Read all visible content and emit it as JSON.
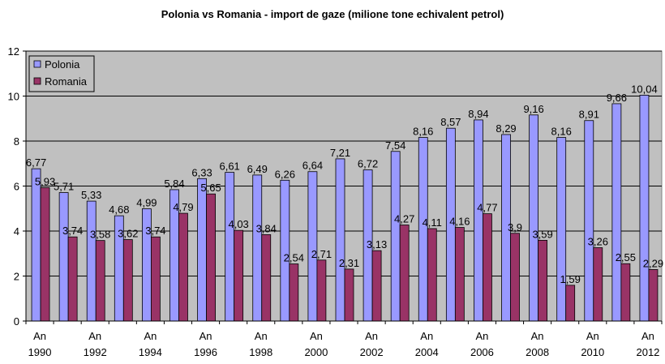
{
  "chart_data": {
    "type": "bar",
    "title": "Polonia vs Romania - import de gaze (milione tone echivalent petrol)",
    "xlabel": "",
    "ylabel": "",
    "ylim": [
      0,
      12
    ],
    "y_ticks": [
      "0",
      "2",
      "4",
      "6",
      "8",
      "10",
      "12"
    ],
    "grid": true,
    "legend_position": "top-left",
    "categories": [
      "1990",
      "1991",
      "1992",
      "1993",
      "1994",
      "1995",
      "1996",
      "1997",
      "1998",
      "1999",
      "2000",
      "2001",
      "2002",
      "2003",
      "2004",
      "2005",
      "2006",
      "2007",
      "2008",
      "2009",
      "2010",
      "2011",
      "2012"
    ],
    "x_tick_labels": [
      {
        "line1": "An",
        "line2": "1990"
      },
      {
        "line1": "An",
        "line2": "1992"
      },
      {
        "line1": "An",
        "line2": "1994"
      },
      {
        "line1": "An",
        "line2": "1996"
      },
      {
        "line1": "An",
        "line2": "1998"
      },
      {
        "line1": "An",
        "line2": "2000"
      },
      {
        "line1": "An",
        "line2": "2002"
      },
      {
        "line1": "An",
        "line2": "2004"
      },
      {
        "line1": "An",
        "line2": "2006"
      },
      {
        "line1": "An",
        "line2": "2008"
      },
      {
        "line1": "An",
        "line2": "2010"
      },
      {
        "line1": "An",
        "line2": "2012"
      }
    ],
    "series": [
      {
        "name": "Polonia",
        "color": "#9999FF",
        "values": [
          6.77,
          5.71,
          5.33,
          4.68,
          4.99,
          5.84,
          6.33,
          6.61,
          6.49,
          6.26,
          6.64,
          7.21,
          6.72,
          7.54,
          8.16,
          8.57,
          8.94,
          8.29,
          9.16,
          8.16,
          8.91,
          9.66,
          10.04
        ],
        "labels": [
          "6,77",
          "5,71",
          "5,33",
          "4,68",
          "4,99",
          "5,84",
          "6,33",
          "6,61",
          "6,49",
          "6,26",
          "6,64",
          "7,21",
          "6,72",
          "7,54",
          "8,16",
          "8,57",
          "8,94",
          "8,29",
          "9,16",
          "8,16",
          "8,91",
          "9,66",
          "10,04"
        ]
      },
      {
        "name": "Romania",
        "color": "#993366",
        "values": [
          5.93,
          3.74,
          3.58,
          3.62,
          3.74,
          4.79,
          5.65,
          4.03,
          3.84,
          2.54,
          2.71,
          2.31,
          3.13,
          4.27,
          4.11,
          4.16,
          4.77,
          3.9,
          3.59,
          1.59,
          3.26,
          2.55,
          2.29
        ],
        "labels": [
          "5,93",
          "3,74",
          "3,58",
          "3,62",
          "3,74",
          "4,79",
          "5,65",
          "4,03",
          "3,84",
          "2,54",
          "2,71",
          "2,31",
          "3,13",
          "4,27",
          "4,11",
          "4,16",
          "4,77",
          "3,9",
          "3,59",
          "1,59",
          "3,26",
          "2,55",
          "2,29"
        ]
      }
    ],
    "plot_background": "#C0C0C0"
  }
}
